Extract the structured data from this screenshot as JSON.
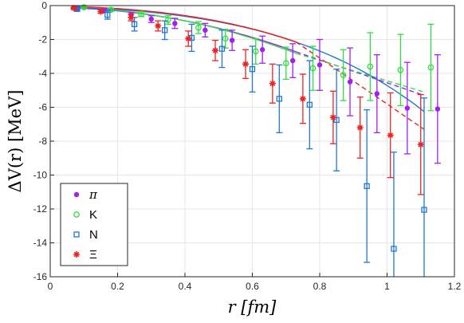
{
  "chart_data": {
    "type": "scatter",
    "title": "",
    "xlabel": "r [fm]",
    "ylabel": "ΔV(r) [MeV]",
    "xlim": [
      0,
      1.2
    ],
    "ylim": [
      -16,
      0
    ],
    "xticks": [
      0,
      0.2,
      0.4,
      0.6,
      0.8,
      1,
      1.2
    ],
    "xtick_labels": [
      "0",
      "0.2",
      "0.4",
      "0.6",
      "0.8",
      "1",
      "1.2"
    ],
    "yticks": [
      0,
      -2,
      -4,
      -6,
      -8,
      -10,
      -12,
      -14,
      -16
    ],
    "ytick_labels": [
      "0",
      "-2",
      "-4",
      "-6",
      "-8",
      "-10",
      "-12",
      "-14",
      "-16"
    ],
    "grid": true,
    "legend_position": "bottom-left",
    "series": [
      {
        "name": "π",
        "color": "#a020f0",
        "marker": "dot",
        "points": [
          {
            "x": 0.08,
            "y": -0.15,
            "err": 0.05
          },
          {
            "x": 0.16,
            "y": -0.3,
            "err": 0.1
          },
          {
            "x": 0.24,
            "y": -0.55,
            "err": 0.15
          },
          {
            "x": 0.3,
            "y": -0.8,
            "err": 0.2
          },
          {
            "x": 0.37,
            "y": -1.05,
            "err": 0.3
          },
          {
            "x": 0.46,
            "y": -1.45,
            "err": 0.4
          },
          {
            "x": 0.54,
            "y": -2.05,
            "err": 0.6
          },
          {
            "x": 0.63,
            "y": -2.6,
            "err": 0.8
          },
          {
            "x": 0.72,
            "y": -3.25,
            "err": 1.0
          },
          {
            "x": 0.8,
            "y": -3.5,
            "err": 1.5
          },
          {
            "x": 0.89,
            "y": -4.5,
            "err": 2.0
          },
          {
            "x": 0.97,
            "y": -5.2,
            "err": 2.3
          },
          {
            "x": 1.06,
            "y": -6.05,
            "err": 2.7
          },
          {
            "x": 1.15,
            "y": -6.1,
            "err": 3.2
          }
        ]
      },
      {
        "name": "K",
        "color": "#33dd44",
        "marker": "circle",
        "points": [
          {
            "x": 0.1,
            "y": -0.1,
            "err": 0.05
          },
          {
            "x": 0.18,
            "y": -0.25,
            "err": 0.1
          },
          {
            "x": 0.27,
            "y": -0.5,
            "err": 0.15
          },
          {
            "x": 0.35,
            "y": -0.85,
            "err": 0.25
          },
          {
            "x": 0.44,
            "y": -1.3,
            "err": 0.35
          },
          {
            "x": 0.52,
            "y": -1.95,
            "err": 0.55
          },
          {
            "x": 0.61,
            "y": -2.7,
            "err": 0.75
          },
          {
            "x": 0.7,
            "y": -3.4,
            "err": 0.95
          },
          {
            "x": 0.78,
            "y": -3.7,
            "err": 1.3
          },
          {
            "x": 0.87,
            "y": -4.1,
            "err": 1.5
          },
          {
            "x": 0.95,
            "y": -3.6,
            "err": 2.0
          },
          {
            "x": 1.04,
            "y": -3.8,
            "err": 2.1
          },
          {
            "x": 1.13,
            "y": -3.65,
            "err": 2.55
          }
        ]
      },
      {
        "name": "N",
        "color": "#1f77d4",
        "marker": "square",
        "points": [
          {
            "x": 0.08,
            "y": -0.2,
            "err": 0.1
          },
          {
            "x": 0.17,
            "y": -0.55,
            "err": 0.25
          },
          {
            "x": 0.25,
            "y": -1.1,
            "err": 0.4
          },
          {
            "x": 0.34,
            "y": -1.45,
            "err": 0.55
          },
          {
            "x": 0.42,
            "y": -1.9,
            "err": 0.8
          },
          {
            "x": 0.51,
            "y": -2.55,
            "err": 1.1
          },
          {
            "x": 0.6,
            "y": -3.75,
            "err": 1.35
          },
          {
            "x": 0.68,
            "y": -5.5,
            "err": 2.0
          },
          {
            "x": 0.77,
            "y": -5.85,
            "err": 2.6
          },
          {
            "x": 0.85,
            "y": -6.75,
            "err": 3.0
          },
          {
            "x": 0.94,
            "y": -10.65,
            "err": 4.5
          },
          {
            "x": 1.02,
            "y": -14.35,
            "err": 5.7
          },
          {
            "x": 1.11,
            "y": -12.05,
            "err": 6.6
          }
        ]
      },
      {
        "name": "Ξ",
        "color": "#ee2222",
        "marker": "asterisk",
        "points": [
          {
            "x": 0.07,
            "y": -0.15,
            "err": 0.05
          },
          {
            "x": 0.15,
            "y": -0.35,
            "err": 0.1
          },
          {
            "x": 0.24,
            "y": -0.7,
            "err": 0.2
          },
          {
            "x": 0.32,
            "y": -1.2,
            "err": 0.3
          },
          {
            "x": 0.41,
            "y": -1.95,
            "err": 0.45
          },
          {
            "x": 0.49,
            "y": -2.65,
            "err": 0.6
          },
          {
            "x": 0.58,
            "y": -3.45,
            "err": 0.85
          },
          {
            "x": 0.66,
            "y": -4.6,
            "err": 1.15
          },
          {
            "x": 0.75,
            "y": -5.5,
            "err": 1.45
          },
          {
            "x": 0.84,
            "y": -6.6,
            "err": 1.55
          },
          {
            "x": 0.92,
            "y": -7.2,
            "err": 1.8
          },
          {
            "x": 1.01,
            "y": -7.65,
            "err": 2.5
          },
          {
            "x": 1.1,
            "y": -8.2,
            "err": 2.95
          }
        ]
      }
    ],
    "fits": [
      {
        "color": "#a020f0",
        "solid": {
          "x0": 0.065,
          "x1": 0.73,
          "a": -0.12,
          "b": -0.2,
          "c": -5.1
        },
        "dashed_to": 1.11,
        "dashed_end_y": -5.3
      },
      {
        "color": "#33dd44",
        "solid": {
          "x0": 0.065,
          "x1": 0.73,
          "a": -0.08,
          "b": -0.05,
          "c": -5.4
        },
        "dashed_to": 1.11,
        "dashed_end_y": -5.1
      },
      {
        "color": "#1f77d4",
        "solid": {
          "x0": 0.065,
          "x1": 1.11,
          "a": -0.12,
          "b": -3.3,
          "c": -3.1
        },
        "dashed_to": 1.11,
        "dashed_end_y": -7.4
      },
      {
        "color": "#ee2222",
        "solid": {
          "x0": 0.065,
          "x1": 0.73,
          "a": -0.05,
          "b": -3.0,
          "c": -3.3
        },
        "dashed_to": 1.11,
        "dashed_end_y": -7.3
      }
    ]
  }
}
